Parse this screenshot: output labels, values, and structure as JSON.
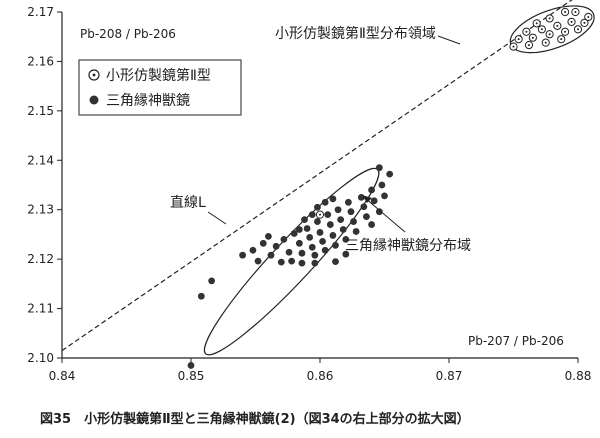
{
  "chart_data": {
    "type": "scatter",
    "y_axis_title": "Pb-208 / Pb-206",
    "x_axis_title": "Pb-207 / Pb-206",
    "xlim": [
      0.84,
      0.88
    ],
    "ylim": [
      2.1,
      2.17
    ],
    "x_ticks": [
      0.84,
      0.85,
      0.86,
      0.87,
      0.88
    ],
    "y_ticks": [
      2.1,
      2.11,
      2.12,
      2.13,
      2.14,
      2.15,
      2.16,
      2.17
    ],
    "x_tick_labels": [
      "0.84",
      "0.85",
      "0.86",
      "0.87",
      "0.88"
    ],
    "y_tick_labels": [
      "2.10",
      "2.11",
      "2.12",
      "2.13",
      "2.14",
      "2.15",
      "2.16",
      "2.17"
    ],
    "grid": false,
    "legend_position": "top-left",
    "series": [
      {
        "name": "小形仿製鏡第Ⅱ型",
        "marker": "circle-dot",
        "color": "#222222",
        "points": [
          [
            0.86,
            2.129
          ],
          [
            0.8768,
            2.1677
          ],
          [
            0.8778,
            2.1687
          ],
          [
            0.879,
            2.17
          ],
          [
            0.8798,
            2.17
          ],
          [
            0.8808,
            2.169
          ],
          [
            0.876,
            2.166
          ],
          [
            0.8772,
            2.1665
          ],
          [
            0.8784,
            2.1672
          ],
          [
            0.8795,
            2.168
          ],
          [
            0.8805,
            2.1678
          ],
          [
            0.8754,
            2.1645
          ],
          [
            0.8765,
            2.1648
          ],
          [
            0.8778,
            2.1655
          ],
          [
            0.879,
            2.166
          ],
          [
            0.88,
            2.1665
          ],
          [
            0.875,
            2.163
          ],
          [
            0.8762,
            2.1633
          ],
          [
            0.8775,
            2.1638
          ],
          [
            0.8787,
            2.1645
          ]
        ]
      },
      {
        "name": "三角縁神獣鏡",
        "marker": "filled-circle",
        "color": "#333333",
        "points": [
          [
            0.85,
            2.0985
          ],
          [
            0.8508,
            2.1125
          ],
          [
            0.8516,
            2.1156
          ],
          [
            0.854,
            2.1208
          ],
          [
            0.8548,
            2.1218
          ],
          [
            0.8556,
            2.1232
          ],
          [
            0.8562,
            2.1208
          ],
          [
            0.8566,
            2.1226
          ],
          [
            0.8572,
            2.124
          ],
          [
            0.8576,
            2.1214
          ],
          [
            0.858,
            2.1252
          ],
          [
            0.8584,
            2.1232
          ],
          [
            0.8586,
            2.1212
          ],
          [
            0.859,
            2.1262
          ],
          [
            0.8592,
            2.1244
          ],
          [
            0.8594,
            2.1224
          ],
          [
            0.8596,
            2.1208
          ],
          [
            0.8598,
            2.1276
          ],
          [
            0.86,
            2.1254
          ],
          [
            0.8602,
            2.1236
          ],
          [
            0.8604,
            2.1218
          ],
          [
            0.8606,
            2.129
          ],
          [
            0.8608,
            2.127
          ],
          [
            0.861,
            2.1248
          ],
          [
            0.8612,
            2.1228
          ],
          [
            0.8614,
            2.13
          ],
          [
            0.8616,
            2.128
          ],
          [
            0.8618,
            2.126
          ],
          [
            0.862,
            2.124
          ],
          [
            0.8622,
            2.1315
          ],
          [
            0.8624,
            2.1296
          ],
          [
            0.8626,
            2.1276
          ],
          [
            0.8628,
            2.1256
          ],
          [
            0.8632,
            2.1325
          ],
          [
            0.8634,
            2.1306
          ],
          [
            0.8636,
            2.1286
          ],
          [
            0.864,
            2.134
          ],
          [
            0.8642,
            2.1318
          ],
          [
            0.8646,
            2.1296
          ],
          [
            0.8648,
            2.135
          ],
          [
            0.865,
            2.1328
          ],
          [
            0.8654,
            2.1372
          ],
          [
            0.8646,
            2.1385
          ],
          [
            0.8584,
            2.126
          ],
          [
            0.8588,
            2.128
          ],
          [
            0.8594,
            2.129
          ],
          [
            0.8598,
            2.1305
          ],
          [
            0.8604,
            2.1315
          ],
          [
            0.861,
            2.1322
          ],
          [
            0.8578,
            2.1196
          ],
          [
            0.8586,
            2.1192
          ],
          [
            0.857,
            2.1194
          ],
          [
            0.8552,
            2.1196
          ],
          [
            0.856,
            2.1246
          ],
          [
            0.862,
            2.121
          ],
          [
            0.8612,
            2.1195
          ],
          [
            0.8596,
            2.1192
          ],
          [
            0.864,
            2.127
          ]
        ]
      }
    ],
    "annotations": {
      "line_l": "直線L",
      "small_mirror_region": "小形仿製鏡第Ⅱ型分布領域",
      "sankakubuchi_region": "三角縁神獣鏡分布域"
    }
  },
  "caption": "図35　小形仿製鏡第Ⅱ型と三角縁神獣鏡(2)（図34の右上部分の拡大図）"
}
